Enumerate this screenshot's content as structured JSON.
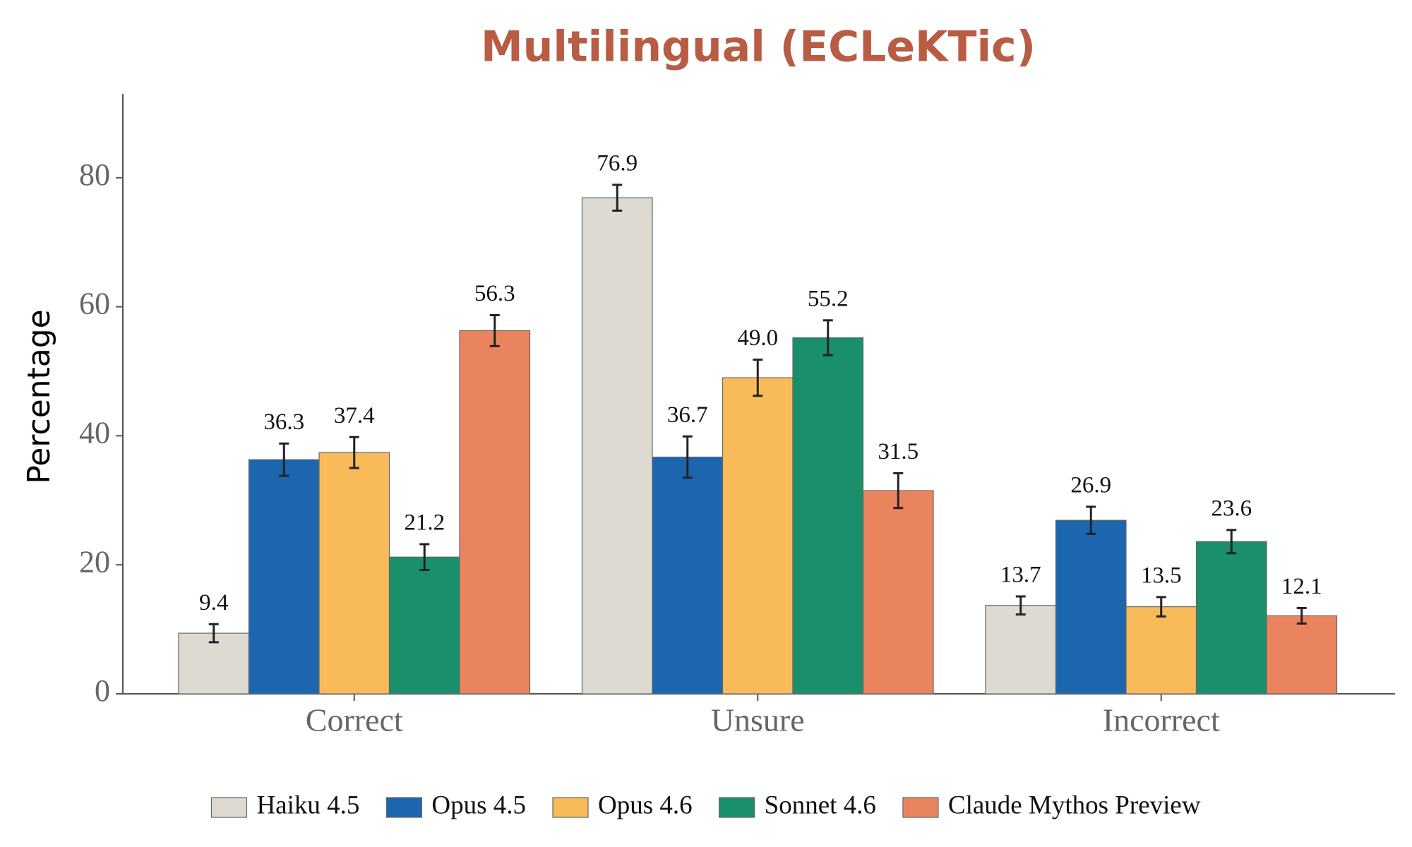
{
  "chart_data": {
    "type": "bar",
    "title": "Multilingual (ECLeKTic)",
    "y_label": "Percentage",
    "categories": [
      "Correct",
      "Unsure",
      "Incorrect"
    ],
    "series": [
      {
        "name": "Haiku 4.5",
        "color": "#dddbd1",
        "values": [
          9.4,
          76.9,
          13.7
        ],
        "value_labels": [
          "9.4",
          "76.9",
          "13.7"
        ],
        "errors": [
          1.4,
          2.0,
          1.4
        ]
      },
      {
        "name": "Opus 4.5",
        "color": "#1c66b0",
        "values": [
          36.3,
          36.7,
          26.9
        ],
        "value_labels": [
          "36.3",
          "36.7",
          "26.9"
        ],
        "errors": [
          2.5,
          3.2,
          2.1
        ]
      },
      {
        "name": "Opus 4.6",
        "color": "#f9bb5a",
        "values": [
          37.4,
          49.0,
          13.5
        ],
        "value_labels": [
          "37.4",
          "49.0",
          "13.5"
        ],
        "errors": [
          2.4,
          2.8,
          1.5
        ]
      },
      {
        "name": "Sonnet 4.6",
        "color": "#19906b",
        "values": [
          21.2,
          55.2,
          23.6
        ],
        "value_labels": [
          "21.2",
          "55.2",
          "23.6"
        ],
        "errors": [
          2.0,
          2.7,
          1.8
        ]
      },
      {
        "name": "Claude Mythos Preview",
        "color": "#ea845f",
        "values": [
          56.3,
          31.5,
          12.1
        ],
        "value_labels": [
          "56.3",
          "31.5",
          "12.1"
        ],
        "errors": [
          2.4,
          2.7,
          1.2
        ]
      }
    ],
    "ylim": [
      0,
      93
    ],
    "yticks": [
      0,
      20,
      40,
      60,
      80
    ],
    "grid": false,
    "legend": "bottom"
  }
}
